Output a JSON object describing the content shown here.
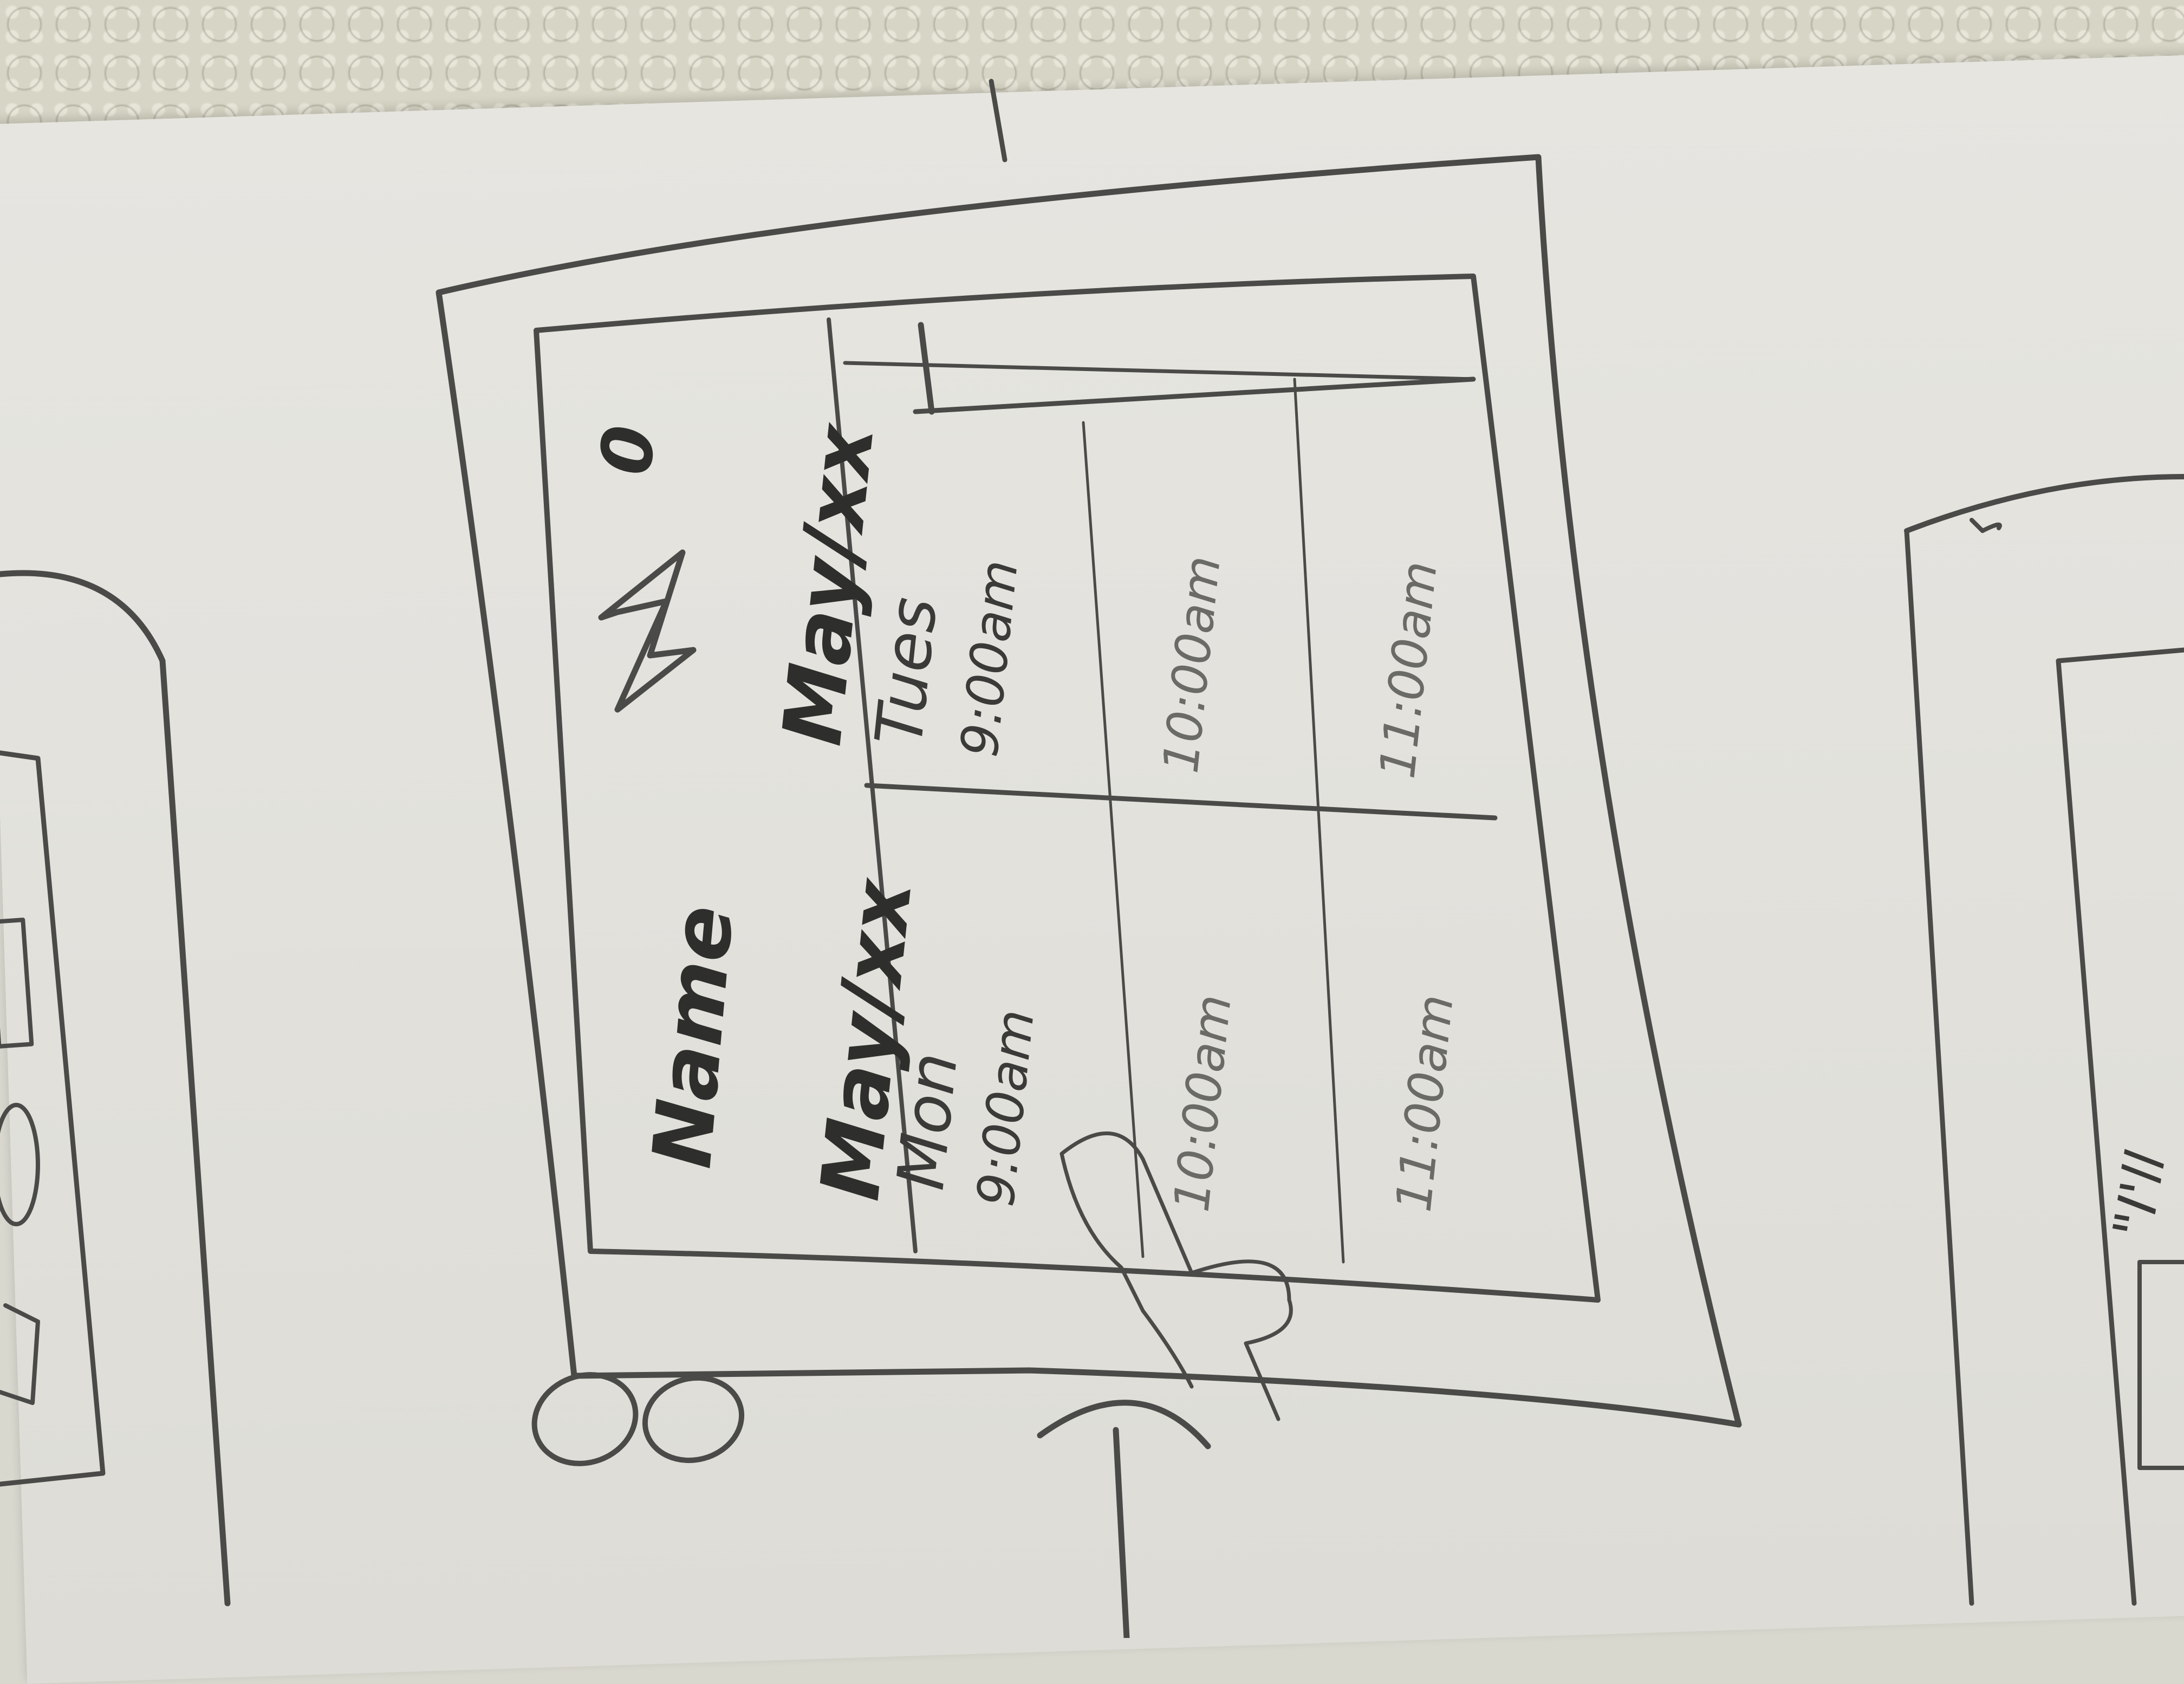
{
  "sketch": {
    "header": {
      "name": "Name",
      "star_icon": "star-icon",
      "zero": "0"
    },
    "days": [
      {
        "date": "May/xx",
        "day": "Mon",
        "times": [
          "9:00am",
          "10:00am",
          "11:00am"
        ]
      },
      {
        "date": "May/xx",
        "day": "Tues",
        "times": [
          "9:00am",
          "10:00am",
          "11:00am"
        ]
      }
    ],
    "bottom_left_mark": "8",
    "right_sketch_text": "\"I'll"
  },
  "colors": {
    "pencil": "#4a4a48",
    "paper": "#e4e3de",
    "lace": "#d7d5c5"
  }
}
